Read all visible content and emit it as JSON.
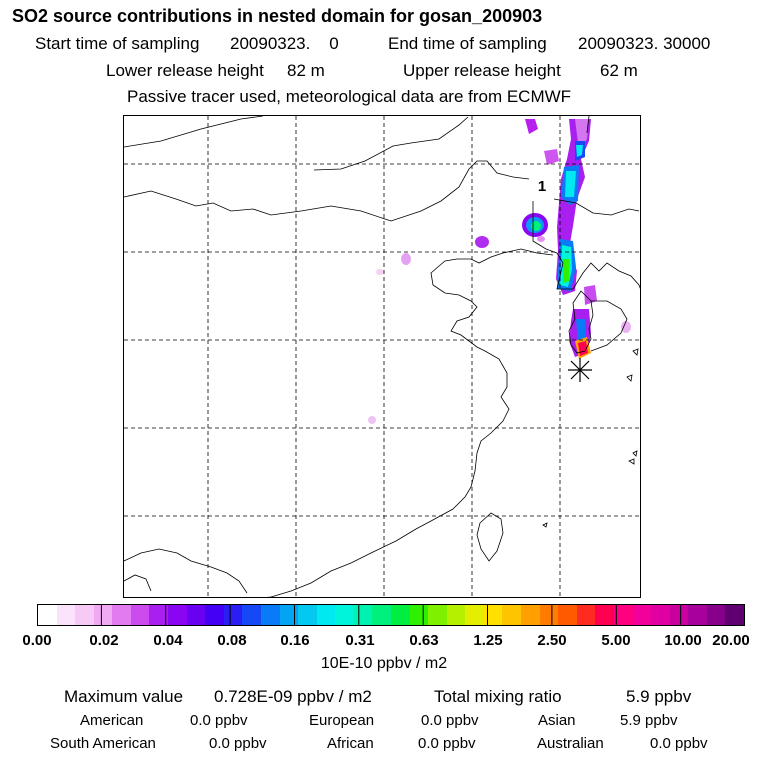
{
  "header": {
    "title": "SO2 source contributions in nested domain for gosan_200903",
    "start_label": "Start time of sampling",
    "start_value": "20090323.    0",
    "end_label": "End time of sampling",
    "end_value": "20090323. 30000",
    "lower_label": "Lower release height",
    "lower_value": "82 m",
    "upper_label": "Upper release height",
    "upper_value": "62 m",
    "note": "Passive tracer used, meteorological data are from ECMWF"
  },
  "map": {
    "contour_label": "1",
    "receptor_marker": "gosan-receptor"
  },
  "legend": {
    "ticks": [
      "0.00",
      "0.02",
      "0.04",
      "0.08",
      "0.16",
      "0.31",
      "0.63",
      "1.25",
      "2.50",
      "5.00",
      "10.00",
      "20.00"
    ],
    "colors": [
      "#ffffff",
      "#fbe3fb",
      "#f7c9f7",
      "#f0a9f2",
      "#e27bef",
      "#cb4bef",
      "#a81ff0",
      "#8a06f2",
      "#6a00f2",
      "#4200f4",
      "#2a1ef5",
      "#1748f6",
      "#0a7bf6",
      "#04a4f4",
      "#03c8f0",
      "#00e8f0",
      "#00f4dc",
      "#00f2b0",
      "#00f07e",
      "#00ee40",
      "#2ef000",
      "#7ef000",
      "#b4f000",
      "#e4ee00",
      "#ffe000",
      "#ffc400",
      "#ffa000",
      "#ff7c00",
      "#ff5a00",
      "#ff2a20",
      "#ff0050",
      "#ff0080",
      "#f2009a",
      "#e000a2",
      "#c800a0",
      "#a8009a",
      "#86008a",
      "#600070"
    ],
    "units": "10E-10 ppbv / m2"
  },
  "summary": {
    "max_label": "Maximum value",
    "max_value": "0.728E-09 ppbv / m2",
    "total_label": "Total mixing ratio",
    "total_value": "5.9 ppbv",
    "regions": [
      {
        "name": "American",
        "value": "0.0 ppbv"
      },
      {
        "name": "European",
        "value": "0.0 ppbv"
      },
      {
        "name": "Asian",
        "value": "5.9 ppbv"
      },
      {
        "name": "South American",
        "value": "0.0 ppbv"
      },
      {
        "name": "African",
        "value": "0.0 ppbv"
      },
      {
        "name": "Australian",
        "value": "0.0 ppbv"
      }
    ]
  }
}
